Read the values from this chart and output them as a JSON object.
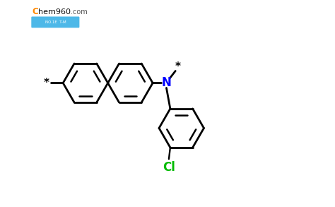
{
  "background_color": "#ffffff",
  "line_color": "#000000",
  "N_color": "#0000ff",
  "Cl_color": "#00bb00",
  "lw": 2.0,
  "lw_inner": 1.8,
  "figsize": [
    4.74,
    2.93
  ],
  "dpi": 100,
  "xlim": [
    0,
    10
  ],
  "ylim": [
    -4.0,
    3.5
  ]
}
